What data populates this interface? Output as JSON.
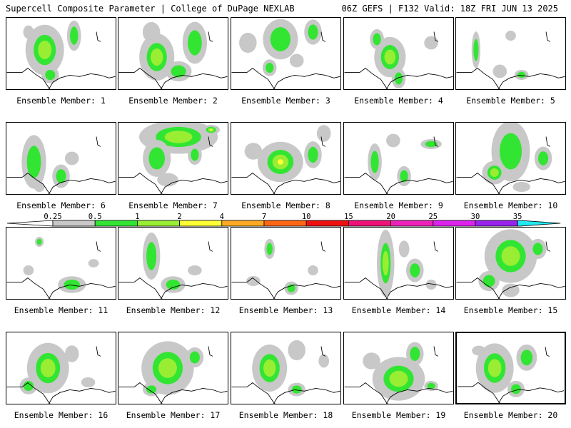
{
  "header": {
    "left": "Supercell Composite Parameter | College of DuPage NEXLAB",
    "right": "06Z GEFS | F132 Valid: 18Z FRI JUN 13 2025"
  },
  "caption_prefix": "Ensemble Member: ",
  "selected_member": 20,
  "colorbar": {
    "labels": [
      "0.25",
      "0.5",
      "1",
      "2",
      "4",
      "7",
      "10",
      "15",
      "20",
      "25",
      "30",
      "35"
    ],
    "colors": [
      "#c8c8c8",
      "#33e533",
      "#99ee33",
      "#ffff33",
      "#ffaa22",
      "#ff6611",
      "#ee1111",
      "#ee1177",
      "#ee22bb",
      "#dd22ee",
      "#9922ee",
      "#bb77ee",
      "#22e8f0"
    ]
  },
  "members": [
    {
      "id": 1,
      "blobs": [
        [
          0.35,
          0.45,
          22,
          30,
          2
        ],
        [
          0.62,
          0.25,
          8,
          18,
          1
        ],
        [
          0.2,
          0.2,
          6,
          8,
          0
        ],
        [
          0.4,
          0.8,
          10,
          10,
          1
        ]
      ]
    },
    {
      "id": 2,
      "blobs": [
        [
          0.35,
          0.55,
          20,
          28,
          2
        ],
        [
          0.7,
          0.35,
          14,
          25,
          1
        ],
        [
          0.3,
          0.2,
          10,
          12,
          0
        ],
        [
          0.55,
          0.75,
          15,
          12,
          1
        ]
      ]
    },
    {
      "id": 3,
      "blobs": [
        [
          0.45,
          0.3,
          20,
          24,
          1
        ],
        [
          0.75,
          0.2,
          10,
          15,
          1
        ],
        [
          0.15,
          0.35,
          10,
          12,
          0
        ],
        [
          0.35,
          0.7,
          8,
          10,
          1
        ],
        [
          0.6,
          0.6,
          8,
          8,
          0
        ]
      ]
    },
    {
      "id": 4,
      "blobs": [
        [
          0.42,
          0.55,
          18,
          24,
          2
        ],
        [
          0.3,
          0.3,
          8,
          12,
          1
        ],
        [
          0.5,
          0.85,
          8,
          12,
          1
        ],
        [
          0.8,
          0.35,
          8,
          8,
          0
        ]
      ]
    },
    {
      "id": 5,
      "blobs": [
        [
          0.18,
          0.45,
          5,
          22,
          1
        ],
        [
          0.4,
          0.75,
          8,
          8,
          0
        ],
        [
          0.6,
          0.8,
          8,
          6,
          1
        ],
        [
          0.5,
          0.25,
          6,
          6,
          0
        ]
      ]
    },
    {
      "id": 6,
      "blobs": [
        [
          0.25,
          0.55,
          14,
          32,
          1
        ],
        [
          0.5,
          0.75,
          10,
          14,
          1
        ],
        [
          0.6,
          0.5,
          8,
          8,
          0
        ],
        [
          0.3,
          0.9,
          6,
          6,
          0
        ]
      ]
    },
    {
      "id": 7,
      "blobs": [
        [
          0.55,
          0.2,
          45,
          20,
          2
        ],
        [
          0.85,
          0.1,
          10,
          6,
          3
        ],
        [
          0.35,
          0.5,
          16,
          22,
          1
        ],
        [
          0.45,
          0.8,
          12,
          8,
          0
        ],
        [
          0.7,
          0.45,
          8,
          12,
          1
        ]
      ]
    },
    {
      "id": 8,
      "blobs": [
        [
          0.45,
          0.55,
          26,
          24,
          3
        ],
        [
          0.75,
          0.45,
          10,
          16,
          1
        ],
        [
          0.2,
          0.4,
          10,
          10,
          0
        ],
        [
          0.85,
          0.15,
          8,
          10,
          0
        ]
      ]
    },
    {
      "id": 9,
      "blobs": [
        [
          0.28,
          0.55,
          8,
          22,
          1
        ],
        [
          0.55,
          0.75,
          8,
          12,
          1
        ],
        [
          0.8,
          0.3,
          12,
          6,
          1
        ],
        [
          0.45,
          0.25,
          8,
          8,
          0
        ]
      ]
    },
    {
      "id": 10,
      "blobs": [
        [
          0.5,
          0.4,
          22,
          36,
          1
        ],
        [
          0.35,
          0.7,
          14,
          14,
          2
        ],
        [
          0.8,
          0.5,
          10,
          14,
          1
        ],
        [
          0.6,
          0.9,
          10,
          6,
          0
        ]
      ]
    },
    {
      "id": 11,
      "blobs": [
        [
          0.6,
          0.8,
          16,
          10,
          1
        ],
        [
          0.3,
          0.2,
          5,
          6,
          1
        ],
        [
          0.2,
          0.6,
          6,
          6,
          0
        ],
        [
          0.8,
          0.5,
          6,
          5,
          0
        ]
      ]
    },
    {
      "id": 12,
      "blobs": [
        [
          0.3,
          0.4,
          10,
          28,
          1
        ],
        [
          0.5,
          0.8,
          14,
          10,
          1
        ],
        [
          0.7,
          0.6,
          8,
          6,
          0
        ]
      ]
    },
    {
      "id": 13,
      "blobs": [
        [
          0.35,
          0.3,
          6,
          12,
          1
        ],
        [
          0.55,
          0.85,
          8,
          8,
          1
        ],
        [
          0.2,
          0.75,
          8,
          6,
          0
        ],
        [
          0.75,
          0.6,
          6,
          6,
          0
        ]
      ]
    },
    {
      "id": 14,
      "blobs": [
        [
          0.38,
          0.5,
          10,
          40,
          2
        ],
        [
          0.65,
          0.6,
          10,
          14,
          1
        ],
        [
          0.55,
          0.3,
          6,
          10,
          0
        ],
        [
          0.8,
          0.8,
          6,
          6,
          0
        ]
      ]
    },
    {
      "id": 15,
      "blobs": [
        [
          0.5,
          0.4,
          30,
          32,
          2
        ],
        [
          0.3,
          0.75,
          12,
          12,
          1
        ],
        [
          0.75,
          0.3,
          10,
          12,
          1
        ],
        [
          0.5,
          0.88,
          10,
          8,
          0
        ]
      ]
    },
    {
      "id": 16,
      "blobs": [
        [
          0.38,
          0.5,
          24,
          30,
          2
        ],
        [
          0.2,
          0.75,
          10,
          10,
          1
        ],
        [
          0.6,
          0.3,
          8,
          10,
          0
        ],
        [
          0.75,
          0.7,
          8,
          6,
          0
        ]
      ]
    },
    {
      "id": 17,
      "blobs": [
        [
          0.45,
          0.5,
          30,
          32,
          2
        ],
        [
          0.7,
          0.35,
          10,
          12,
          1
        ],
        [
          0.3,
          0.8,
          10,
          8,
          1
        ]
      ]
    },
    {
      "id": 18,
      "blobs": [
        [
          0.35,
          0.5,
          20,
          28,
          2
        ],
        [
          0.6,
          0.25,
          10,
          12,
          0
        ],
        [
          0.6,
          0.8,
          10,
          8,
          1
        ],
        [
          0.85,
          0.4,
          6,
          8,
          0
        ]
      ]
    },
    {
      "id": 19,
      "blobs": [
        [
          0.5,
          0.65,
          30,
          26,
          2
        ],
        [
          0.65,
          0.3,
          10,
          14,
          1
        ],
        [
          0.25,
          0.4,
          10,
          10,
          0
        ],
        [
          0.8,
          0.75,
          8,
          6,
          1
        ]
      ]
    },
    {
      "id": 20,
      "blobs": [
        [
          0.35,
          0.5,
          22,
          30,
          2
        ],
        [
          0.65,
          0.35,
          12,
          16,
          1
        ],
        [
          0.55,
          0.8,
          10,
          10,
          1
        ],
        [
          0.2,
          0.25,
          8,
          6,
          0
        ]
      ]
    }
  ]
}
